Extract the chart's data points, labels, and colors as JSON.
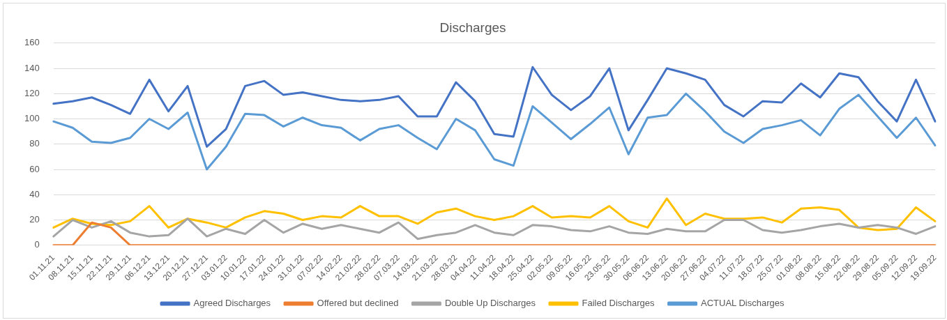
{
  "chart_data": {
    "type": "line",
    "title": "Discharges",
    "categories": [
      "01.11.21",
      "08.11.21",
      "15.11.21",
      "22.11.21",
      "29.11.21",
      "06.12.21",
      "13.12.21",
      "20.12.21",
      "27.12.21",
      "03.01.22",
      "10.01.22",
      "17.01.22",
      "24.01.22",
      "31.01.22",
      "07.02.22",
      "14.02.22",
      "21.02.22",
      "28.02.22",
      "07.03.22",
      "14.03.22",
      "21.03.22",
      "28.03.22",
      "04.04.22",
      "11.04.22",
      "18.04.22",
      "25.04.22",
      "02.05.22",
      "09.05.22",
      "16.05.22",
      "23.05.22",
      "30.05.22",
      "06.06.22",
      "13.06.22",
      "20.06.22",
      "27.06.22",
      "04.07.22",
      "11.07.22",
      "18.07.22",
      "25.07.22",
      "01.08.22",
      "08.08.22",
      "15.08.22",
      "22.08.22",
      "29.08.22",
      "05.09.22",
      "12.09.22",
      "19.09.22"
    ],
    "series": [
      {
        "name": "Agreed Discharges",
        "color": "#4472c4",
        "values": [
          112,
          114,
          117,
          111,
          104,
          131,
          106,
          126,
          78,
          92,
          126,
          130,
          119,
          121,
          118,
          115,
          114,
          115,
          118,
          102,
          102,
          129,
          114,
          88,
          86,
          141,
          119,
          107,
          118,
          140,
          91,
          115,
          140,
          136,
          131,
          111,
          102,
          114,
          113,
          128,
          117,
          136,
          133,
          114,
          98,
          131,
          98
        ]
      },
      {
        "name": "Offered but declined",
        "color": "#ed7d31",
        "values": [
          0,
          0,
          18,
          14,
          0,
          0,
          0,
          0,
          0,
          0,
          0,
          0,
          0,
          0,
          0,
          0,
          0,
          0,
          0,
          0,
          0,
          0,
          0,
          0,
          0,
          0,
          0,
          0,
          0,
          0,
          0,
          0,
          0,
          0,
          0,
          0,
          0,
          0,
          0,
          0,
          0,
          0,
          0,
          0,
          0,
          0,
          0
        ]
      },
      {
        "name": "Double Up Discharges",
        "color": "#a5a5a5",
        "values": [
          7,
          20,
          14,
          19,
          10,
          7,
          8,
          21,
          7,
          13,
          9,
          20,
          10,
          17,
          13,
          16,
          13,
          10,
          18,
          5,
          8,
          10,
          16,
          10,
          8,
          16,
          15,
          12,
          11,
          15,
          10,
          9,
          13,
          11,
          11,
          20,
          20,
          12,
          10,
          12,
          15,
          17,
          14,
          16,
          14,
          9,
          15
        ]
      },
      {
        "name": "Failed Discharges",
        "color": "#ffc000",
        "values": [
          14,
          21,
          17,
          16,
          19,
          31,
          14,
          21,
          18,
          14,
          22,
          27,
          25,
          20,
          23,
          22,
          31,
          23,
          23,
          17,
          26,
          29,
          23,
          20,
          23,
          31,
          22,
          23,
          22,
          31,
          19,
          14,
          37,
          16,
          25,
          21,
          21,
          22,
          18,
          29,
          30,
          28,
          14,
          12,
          13,
          30,
          19
        ]
      },
      {
        "name": "ACTUAL Discharges",
        "color": "#5b9bd5",
        "values": [
          98,
          93,
          82,
          81,
          85,
          100,
          92,
          105,
          60,
          78,
          104,
          103,
          94,
          101,
          95,
          93,
          83,
          92,
          95,
          85,
          76,
          100,
          91,
          68,
          63,
          110,
          97,
          84,
          96,
          109,
          72,
          101,
          103,
          120,
          106,
          90,
          81,
          92,
          95,
          99,
          87,
          108,
          119,
          102,
          85,
          101,
          79
        ]
      }
    ],
    "ylim": [
      0,
      160
    ],
    "yticks": [
      0,
      20,
      40,
      60,
      80,
      100,
      120,
      140,
      160
    ],
    "grid": "y",
    "legend": "bottom",
    "marker": "none",
    "line_style": "solid"
  }
}
